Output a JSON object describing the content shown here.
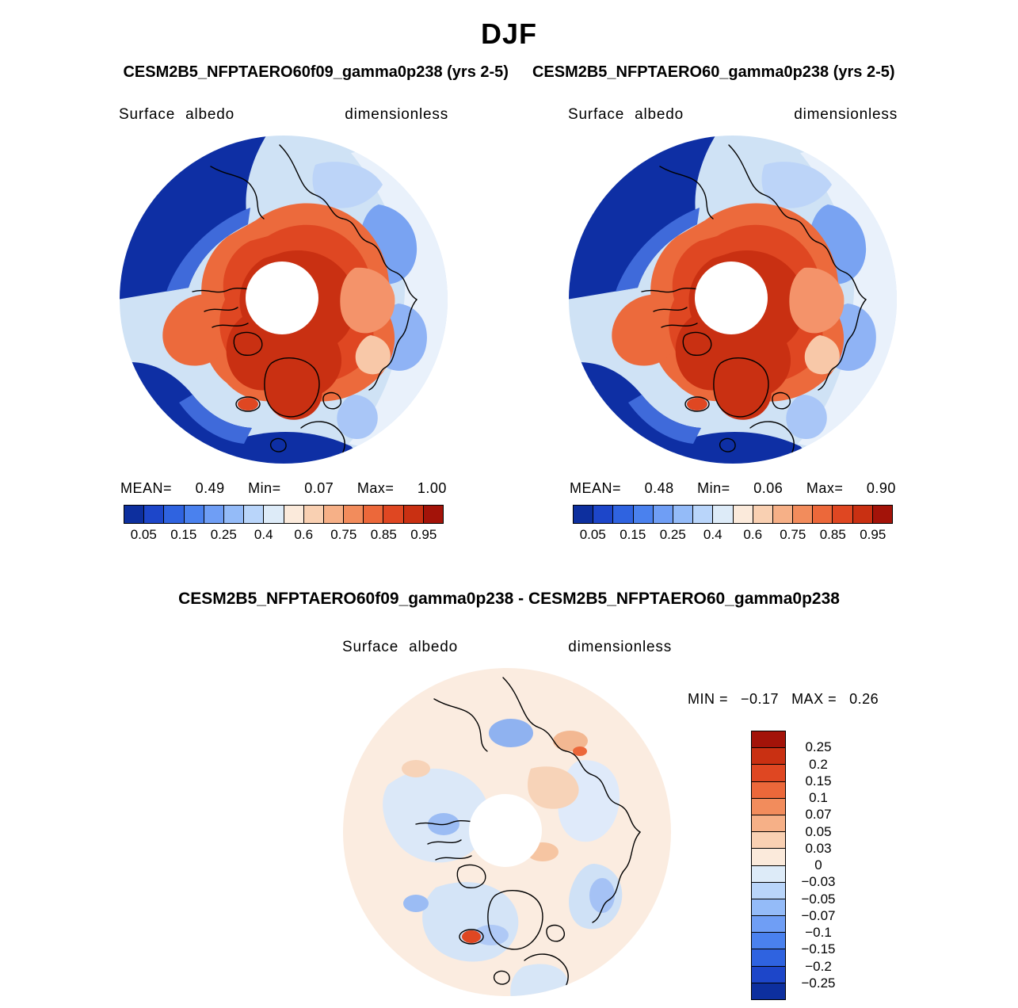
{
  "title": "DJF",
  "panels": {
    "left": {
      "subtitle": "CESM2B5_NFPTAERO60f09_gamma0p238 (yrs 2-5)",
      "variable": "Surface albedo",
      "units": "dimensionless",
      "stats": {
        "mean_label": "MEAN=",
        "mean": "0.49",
        "min_label": "Min=",
        "min": "0.07",
        "max_label": "Max=",
        "max": "1.00"
      }
    },
    "right": {
      "subtitle": "CESM2B5_NFPTAERO60_gamma0p238 (yrs 2-5)",
      "variable": "Surface albedo",
      "units": "dimensionless",
      "stats": {
        "mean_label": "MEAN=",
        "mean": "0.48",
        "min_label": "Min=",
        "min": "0.06",
        "max_label": "Max=",
        "max": "0.90"
      }
    },
    "diff": {
      "subtitle": "CESM2B5_NFPTAERO60f09_gamma0p238 - CESM2B5_NFPTAERO60_gamma0p238",
      "variable": "Surface albedo",
      "units": "dimensionless",
      "stats": {
        "min_label": "MIN =",
        "min": "−0.17",
        "max_label": "MAX =",
        "max": "0.26"
      }
    }
  },
  "colorbars": {
    "albedo": {
      "colors": [
        "#0d2f9e",
        "#1d46c9",
        "#2f63e0",
        "#4a81ee",
        "#6f9ef5",
        "#94bbf8",
        "#b9d5fa",
        "#ddebf8",
        "#fbeadb",
        "#f9d0b2",
        "#f6b087",
        "#f28c5c",
        "#ec683a",
        "#df4722",
        "#c93012",
        "#a31309"
      ],
      "ticks": [
        {
          "label": "0.05",
          "pos": 0.0625
        },
        {
          "label": "0.15",
          "pos": 0.1875
        },
        {
          "label": "0.25",
          "pos": 0.3125
        },
        {
          "label": "0.4",
          "pos": 0.4375
        },
        {
          "label": "0.6",
          "pos": 0.5625
        },
        {
          "label": "0.75",
          "pos": 0.6875
        },
        {
          "label": "0.85",
          "pos": 0.8125
        },
        {
          "label": "0.95",
          "pos": 0.9375
        }
      ]
    },
    "diff": {
      "colors": [
        "#a31309",
        "#c93012",
        "#df4722",
        "#ec683a",
        "#f28c5c",
        "#f6b087",
        "#f9d0b2",
        "#fbeadb",
        "#ddebf8",
        "#b9d5fa",
        "#94bbf8",
        "#6f9ef5",
        "#4a81ee",
        "#2f63e0",
        "#1d46c9",
        "#0d2f9e"
      ],
      "ticks": [
        {
          "label": "0.25",
          "pos": 0.0625
        },
        {
          "label": "0.2",
          "pos": 0.125
        },
        {
          "label": "0.15",
          "pos": 0.1875
        },
        {
          "label": "0.1",
          "pos": 0.25
        },
        {
          "label": "0.07",
          "pos": 0.3125
        },
        {
          "label": "0.05",
          "pos": 0.375
        },
        {
          "label": "0.03",
          "pos": 0.4375
        },
        {
          "label": "0",
          "pos": 0.5
        },
        {
          "label": "−0.03",
          "pos": 0.5625
        },
        {
          "label": "−0.05",
          "pos": 0.625
        },
        {
          "label": "−0.07",
          "pos": 0.6875
        },
        {
          "label": "−0.1",
          "pos": 0.75
        },
        {
          "label": "−0.15",
          "pos": 0.8125
        },
        {
          "label": "−0.2",
          "pos": 0.875
        },
        {
          "label": "−0.25",
          "pos": 0.9375
        }
      ]
    }
  },
  "chart_data": [
    {
      "type": "heatmap",
      "projection": "north-polar-stereographic",
      "season": "DJF",
      "title": "CESM2B5_NFPTAERO60f09_gamma0p238 (yrs 2-5)",
      "variable": "Surface albedo",
      "units": "dimensionless",
      "stats": {
        "mean": 0.49,
        "min": 0.07,
        "max": 1.0
      },
      "contour_levels": [
        0.05,
        0.1,
        0.15,
        0.2,
        0.25,
        0.3,
        0.4,
        0.5,
        0.6,
        0.7,
        0.75,
        0.8,
        0.85,
        0.9,
        0.95
      ],
      "labeled_ticks": [
        0.05,
        0.15,
        0.25,
        0.4,
        0.6,
        0.75,
        0.85,
        0.95
      ],
      "legend_position": "bottom"
    },
    {
      "type": "heatmap",
      "projection": "north-polar-stereographic",
      "season": "DJF",
      "title": "CESM2B5_NFPTAERO60_gamma0p238 (yrs 2-5)",
      "variable": "Surface albedo",
      "units": "dimensionless",
      "stats": {
        "mean": 0.48,
        "min": 0.06,
        "max": 0.9
      },
      "contour_levels": [
        0.05,
        0.1,
        0.15,
        0.2,
        0.25,
        0.3,
        0.4,
        0.5,
        0.6,
        0.7,
        0.75,
        0.8,
        0.85,
        0.9,
        0.95
      ],
      "labeled_ticks": [
        0.05,
        0.15,
        0.25,
        0.4,
        0.6,
        0.75,
        0.85,
        0.95
      ],
      "legend_position": "bottom"
    },
    {
      "type": "heatmap",
      "projection": "north-polar-stereographic",
      "season": "DJF",
      "title": "CESM2B5_NFPTAERO60f09_gamma0p238 - CESM2B5_NFPTAERO60_gamma0p238",
      "variable": "Surface albedo",
      "units": "dimensionless",
      "stats": {
        "min": -0.17,
        "max": 0.26
      },
      "contour_levels": [
        -0.25,
        -0.2,
        -0.15,
        -0.1,
        -0.07,
        -0.05,
        -0.03,
        0,
        0.03,
        0.05,
        0.07,
        0.1,
        0.15,
        0.2,
        0.25
      ],
      "legend_position": "right"
    }
  ]
}
